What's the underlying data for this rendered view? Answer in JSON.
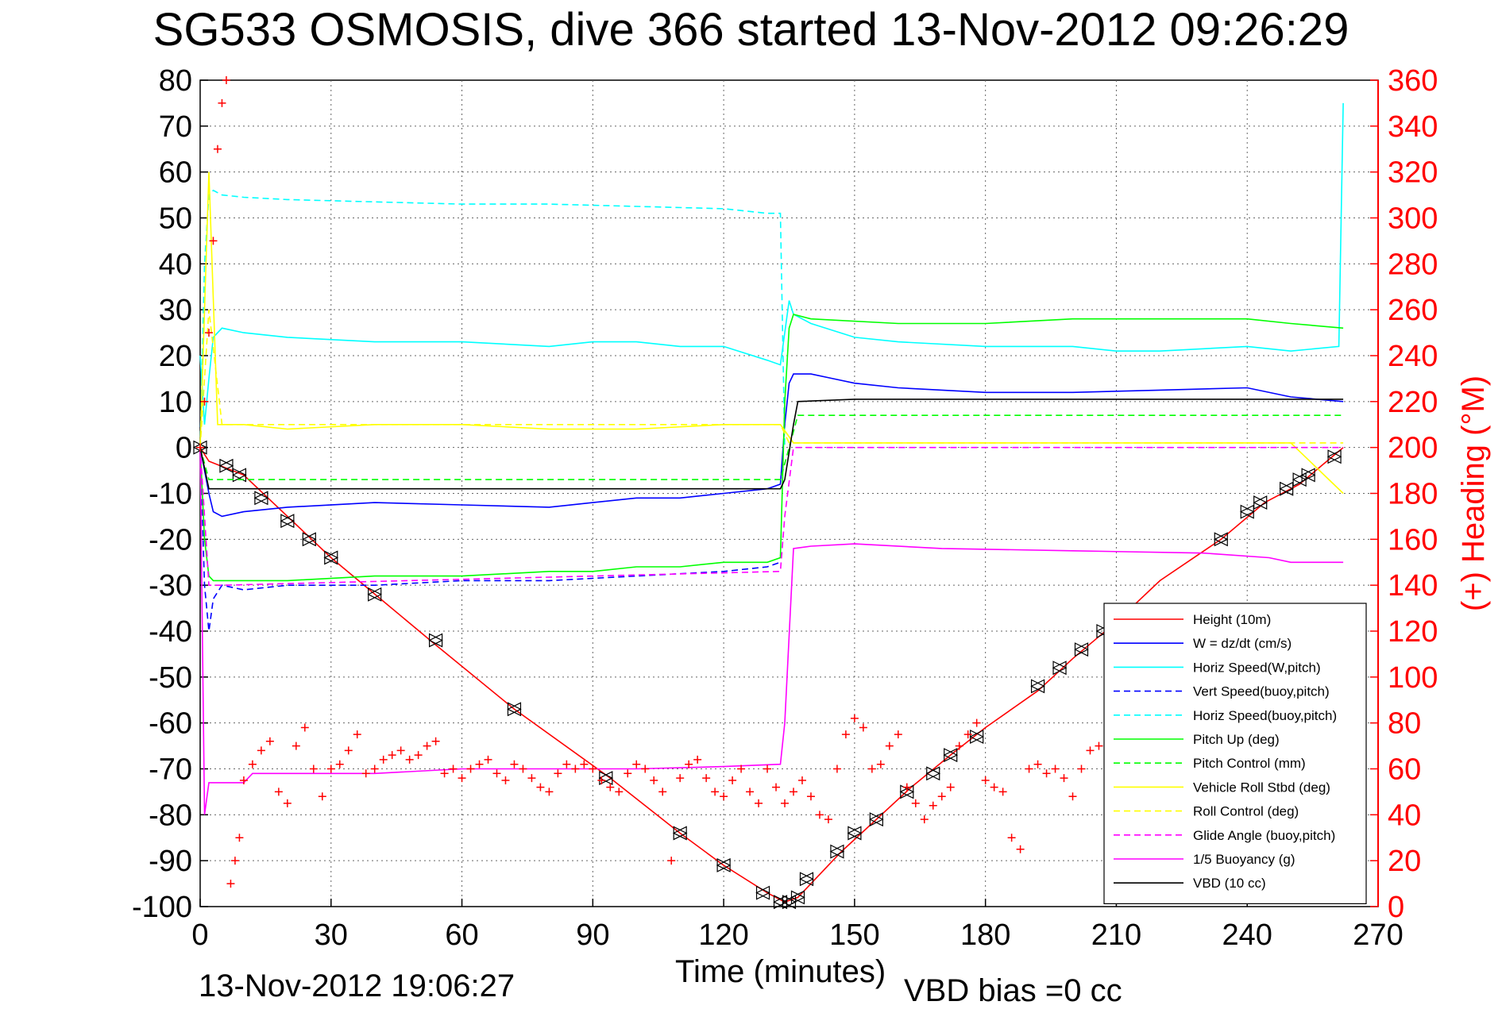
{
  "title": "SG533 OSMOSIS, dive 366 started 13-Nov-2012 09:26:29",
  "footer_time": "13-Nov-2012 19:06:27",
  "footer_bias": "VBD bias =0 cc",
  "colors": {
    "height": "#ff0000",
    "w": "#0000ff",
    "horiz_w": "#00ffff",
    "vert_buoy": "#0000ff",
    "horiz_buoy": "#00ffff",
    "pitch": "#00ff00",
    "pitch_control": "#00ff00",
    "roll": "#ffff00",
    "roll_control": "#ffff00",
    "glide": "#ff00ff",
    "buoyancy": "#ff00ff",
    "vbd": "#000000",
    "heading": "#ff0000"
  },
  "chart_data": {
    "type": "line",
    "title": "SG533 OSMOSIS, dive 366 started 13-Nov-2012 09:26:29",
    "xlabel": "Time (minutes)",
    "ylabel_right": "(+) Heading (°M)",
    "xlim": [
      0,
      270
    ],
    "ylim": [
      -100,
      80
    ],
    "ylim_right": [
      0,
      360
    ],
    "x_ticks": [
      "0",
      "30",
      "60",
      "90",
      "120",
      "150",
      "180",
      "210",
      "240",
      "270"
    ],
    "y_ticks": [
      "80",
      "70",
      "60",
      "50",
      "40",
      "30",
      "20",
      "10",
      "0",
      "-10",
      "-20",
      "-30",
      "-40",
      "-50",
      "-60",
      "-70",
      "-80",
      "-90",
      "-100"
    ],
    "y_right_ticks": [
      "360",
      "340",
      "320",
      "300",
      "280",
      "260",
      "240",
      "220",
      "200",
      "180",
      "160",
      "140",
      "120",
      "100",
      "80",
      "60",
      "40",
      "20",
      "0"
    ],
    "grid": true,
    "legend_position": "lower-right",
    "series": [
      {
        "name": "Height (10m)",
        "style": "solid",
        "x": [
          0,
          2,
          10,
          30,
          54,
          72,
          94,
          110,
          120,
          130,
          134,
          137,
          140,
          147,
          155,
          163,
          172,
          180,
          192,
          200,
          210,
          220,
          234,
          244,
          252,
          257,
          262
        ],
        "y": [
          0,
          -3,
          -6,
          -24,
          -43,
          -57,
          -72,
          -84,
          -91,
          -97,
          -99,
          -98,
          -95,
          -88,
          -81,
          -74,
          -67,
          -61,
          -53,
          -46,
          -38,
          -29,
          -20,
          -12,
          -8,
          -4,
          0
        ],
        "markers_x": [
          0,
          6,
          9,
          14,
          20,
          25,
          30,
          40,
          54,
          72,
          93,
          110,
          120,
          129,
          133,
          135,
          137,
          139,
          146,
          150,
          155,
          162,
          168,
          172,
          178,
          192,
          197,
          202,
          207,
          234,
          240,
          243,
          249,
          252,
          254,
          260
        ],
        "markers_y": [
          0,
          -4,
          -6,
          -11,
          -16,
          -20,
          -24,
          -32,
          -42,
          -57,
          -72,
          -84,
          -91,
          -97,
          -99,
          -99,
          -98,
          -94,
          -88,
          -84,
          -81,
          -75,
          -71,
          -67,
          -63,
          -52,
          -48,
          -44,
          -40,
          -20,
          -14,
          -12,
          -9,
          -7,
          -6,
          -2
        ]
      },
      {
        "name": "W = dz/dt (cm/s)",
        "style": "solid",
        "x": [
          0,
          1,
          2,
          3,
          5,
          10,
          20,
          40,
          60,
          80,
          90,
          100,
          110,
          120,
          130,
          133,
          134,
          135,
          136,
          140,
          145,
          150,
          160,
          180,
          200,
          220,
          240,
          250,
          262
        ],
        "y": [
          0,
          -5,
          -10,
          -14,
          -15,
          -14,
          -13,
          -12,
          -12.5,
          -13,
          -12,
          -11,
          -11,
          -10,
          -9,
          -8,
          5,
          14,
          16,
          16,
          15,
          14,
          13,
          12,
          12,
          12.5,
          13,
          11,
          10
        ]
      },
      {
        "name": "Horiz Speed(W,pitch)",
        "style": "solid",
        "x": [
          0,
          1,
          2,
          3,
          5,
          10,
          20,
          40,
          60,
          80,
          90,
          100,
          110,
          120,
          130,
          133,
          134,
          135,
          136,
          140,
          150,
          160,
          180,
          200,
          210,
          220,
          240,
          250,
          261,
          262
        ],
        "y": [
          20,
          5,
          15,
          24,
          26,
          25,
          24,
          23,
          23,
          22,
          23,
          23,
          22,
          22,
          19,
          18,
          25,
          32,
          29,
          27,
          24,
          23,
          22,
          22,
          21,
          21,
          22,
          21,
          22,
          75
        ]
      },
      {
        "name": "Vert Speed(buoy,pitch)",
        "style": "dashed",
        "x": [
          0,
          1,
          2,
          3,
          5,
          10,
          20,
          40,
          60,
          80,
          100,
          120,
          130,
          133
        ],
        "y": [
          0,
          -30,
          -40,
          -33,
          -30,
          -31,
          -30,
          -30,
          -29,
          -29,
          -28,
          -27,
          -26,
          -25
        ]
      },
      {
        "name": "Horiz Speed(buoy,pitch)",
        "style": "dashed",
        "x": [
          0,
          1,
          2,
          3,
          5,
          10,
          20,
          40,
          60,
          80,
          100,
          120,
          130,
          133,
          134
        ],
        "y": [
          0,
          40,
          55,
          56,
          55,
          54.5,
          54,
          53.5,
          53,
          53,
          52.5,
          52,
          51,
          51,
          0
        ]
      },
      {
        "name": "Pitch Up (deg)",
        "style": "solid",
        "x": [
          0,
          1,
          2,
          3,
          5,
          10,
          20,
          40,
          60,
          80,
          90,
          100,
          110,
          120,
          130,
          133,
          134,
          135,
          136,
          140,
          160,
          180,
          200,
          220,
          240,
          250,
          262
        ],
        "y": [
          0,
          -20,
          -28,
          -29,
          -29,
          -29,
          -29,
          -28,
          -28,
          -27,
          -27,
          -26,
          -26,
          -25,
          -25,
          -24,
          10,
          26,
          29,
          28,
          27,
          27,
          28,
          28,
          28,
          27,
          26
        ]
      },
      {
        "name": "Pitch Control (mm)",
        "style": "dashed",
        "x": [
          0,
          2,
          5,
          133,
          135,
          137,
          262
        ],
        "y": [
          0,
          -7,
          -7,
          -7,
          0,
          7,
          7
        ]
      },
      {
        "name": "Vehicle Roll Stbd (deg)",
        "style": "solid",
        "x": [
          0,
          2,
          4,
          10,
          20,
          40,
          60,
          80,
          100,
          120,
          133,
          136,
          150,
          170,
          190,
          210,
          230,
          250,
          262
        ],
        "y": [
          0,
          60,
          5,
          5,
          4,
          5,
          5,
          4,
          4,
          5,
          5,
          1,
          1,
          1,
          1,
          1,
          1,
          1,
          -10
        ]
      },
      {
        "name": "Roll Control (deg)",
        "style": "dashed",
        "x": [
          0,
          2,
          5,
          133,
          135,
          262
        ],
        "y": [
          0,
          30,
          5,
          5,
          1,
          1
        ]
      },
      {
        "name": "Glide Angle (buoy,pitch)",
        "style": "dashed",
        "x": [
          0,
          2,
          5,
          133,
          134,
          136,
          262
        ],
        "y": [
          0,
          -30,
          -30,
          -27,
          -15,
          0,
          0
        ]
      },
      {
        "name": "1/5 Buoyancy (g)",
        "style": "solid",
        "x": [
          0,
          1,
          2,
          3,
          10,
          12,
          20,
          40,
          60,
          80,
          100,
          120,
          133,
          134,
          136,
          140,
          150,
          170,
          200,
          230,
          245,
          250,
          262
        ],
        "y": [
          0,
          -80,
          -73,
          -73,
          -73,
          -71,
          -71,
          -71,
          -70,
          -70,
          -70,
          -69.5,
          -69,
          -60,
          -22,
          -21.5,
          -21,
          -22,
          -22.5,
          -23,
          -24,
          -25,
          -25
        ]
      },
      {
        "name": "VBD (10 cc)",
        "style": "solid",
        "x": [
          0,
          2,
          5,
          20,
          60,
          100,
          133,
          134,
          136,
          137,
          150,
          262
        ],
        "y": [
          0,
          -9,
          -9,
          -9,
          -9,
          -9,
          -9,
          -7,
          5,
          10,
          10.5,
          10.5
        ]
      }
    ]
  },
  "legend": [
    {
      "label": "Height (10m)",
      "color": "#ff0000",
      "dash": false
    },
    {
      "label": "W = dz/dt (cm/s)",
      "color": "#0000ff",
      "dash": false
    },
    {
      "label": "Horiz Speed(W,pitch)",
      "color": "#00ffff",
      "dash": false
    },
    {
      "label": "Vert Speed(buoy,pitch)",
      "color": "#0000ff",
      "dash": true
    },
    {
      "label": "Horiz Speed(buoy,pitch)",
      "color": "#00ffff",
      "dash": true
    },
    {
      "label": "Pitch Up (deg)",
      "color": "#00ff00",
      "dash": false
    },
    {
      "label": "Pitch Control (mm)",
      "color": "#00ff00",
      "dash": true
    },
    {
      "label": "Vehicle Roll Stbd (deg)",
      "color": "#ffff00",
      "dash": false
    },
    {
      "label": "Roll Control (deg)",
      "color": "#ffff00",
      "dash": true
    },
    {
      "label": "Glide Angle (buoy,pitch)",
      "color": "#ff00ff",
      "dash": true
    },
    {
      "label": "1/5 Buoyancy (g)",
      "color": "#ff00ff",
      "dash": false
    },
    {
      "label": "VBD (10 cc)",
      "color": "#000000",
      "dash": false
    }
  ],
  "heading": {
    "name": "(+) Heading (°M)",
    "x": [
      0,
      1,
      2,
      3,
      4,
      5,
      6,
      7,
      8,
      9,
      10,
      12,
      14,
      16,
      18,
      20,
      22,
      24,
      26,
      28,
      30,
      32,
      34,
      36,
      38,
      40,
      42,
      44,
      46,
      48,
      50,
      52,
      54,
      56,
      58,
      60,
      62,
      64,
      66,
      68,
      70,
      72,
      74,
      76,
      78,
      80,
      82,
      84,
      86,
      88,
      90,
      92,
      94,
      96,
      98,
      100,
      102,
      104,
      106,
      108,
      110,
      112,
      114,
      116,
      118,
      120,
      122,
      124,
      126,
      128,
      130,
      132,
      134,
      136,
      138,
      140,
      142,
      144,
      146,
      148,
      150,
      152,
      154,
      156,
      158,
      160,
      162,
      164,
      166,
      168,
      170,
      172,
      174,
      176,
      178,
      180,
      182,
      184,
      186,
      188,
      190,
      192,
      194,
      196,
      198,
      200,
      202,
      204,
      206,
      208,
      210,
      212,
      214,
      216,
      218,
      220,
      222,
      224,
      226,
      228,
      230,
      232,
      234,
      236,
      238,
      240,
      242,
      244,
      246,
      248,
      250,
      252,
      254
    ],
    "y": [
      200,
      220,
      250,
      290,
      330,
      350,
      360,
      10,
      20,
      30,
      55,
      62,
      68,
      72,
      50,
      45,
      70,
      78,
      60,
      48,
      60,
      62,
      68,
      75,
      58,
      60,
      64,
      66,
      68,
      64,
      66,
      70,
      72,
      58,
      60,
      56,
      60,
      62,
      64,
      58,
      55,
      62,
      60,
      56,
      52,
      50,
      58,
      62,
      60,
      62,
      60,
      55,
      52,
      50,
      58,
      62,
      60,
      55,
      50,
      20,
      56,
      62,
      64,
      56,
      50,
      48,
      55,
      60,
      50,
      45,
      60,
      52,
      45,
      50,
      55,
      48,
      40,
      38,
      60,
      75,
      82,
      78,
      60,
      62,
      70,
      75,
      52,
      45,
      38,
      44,
      48,
      52,
      70,
      75,
      80,
      55,
      52,
      50,
      30,
      25,
      60,
      62,
      58,
      60,
      56,
      48,
      60,
      68,
      70,
      40,
      42,
      62,
      68,
      72,
      80,
      75,
      70,
      62,
      60,
      58,
      52,
      55,
      60,
      62,
      58,
      56,
      50,
      52,
      55,
      60,
      58,
      10,
      30
    ]
  }
}
